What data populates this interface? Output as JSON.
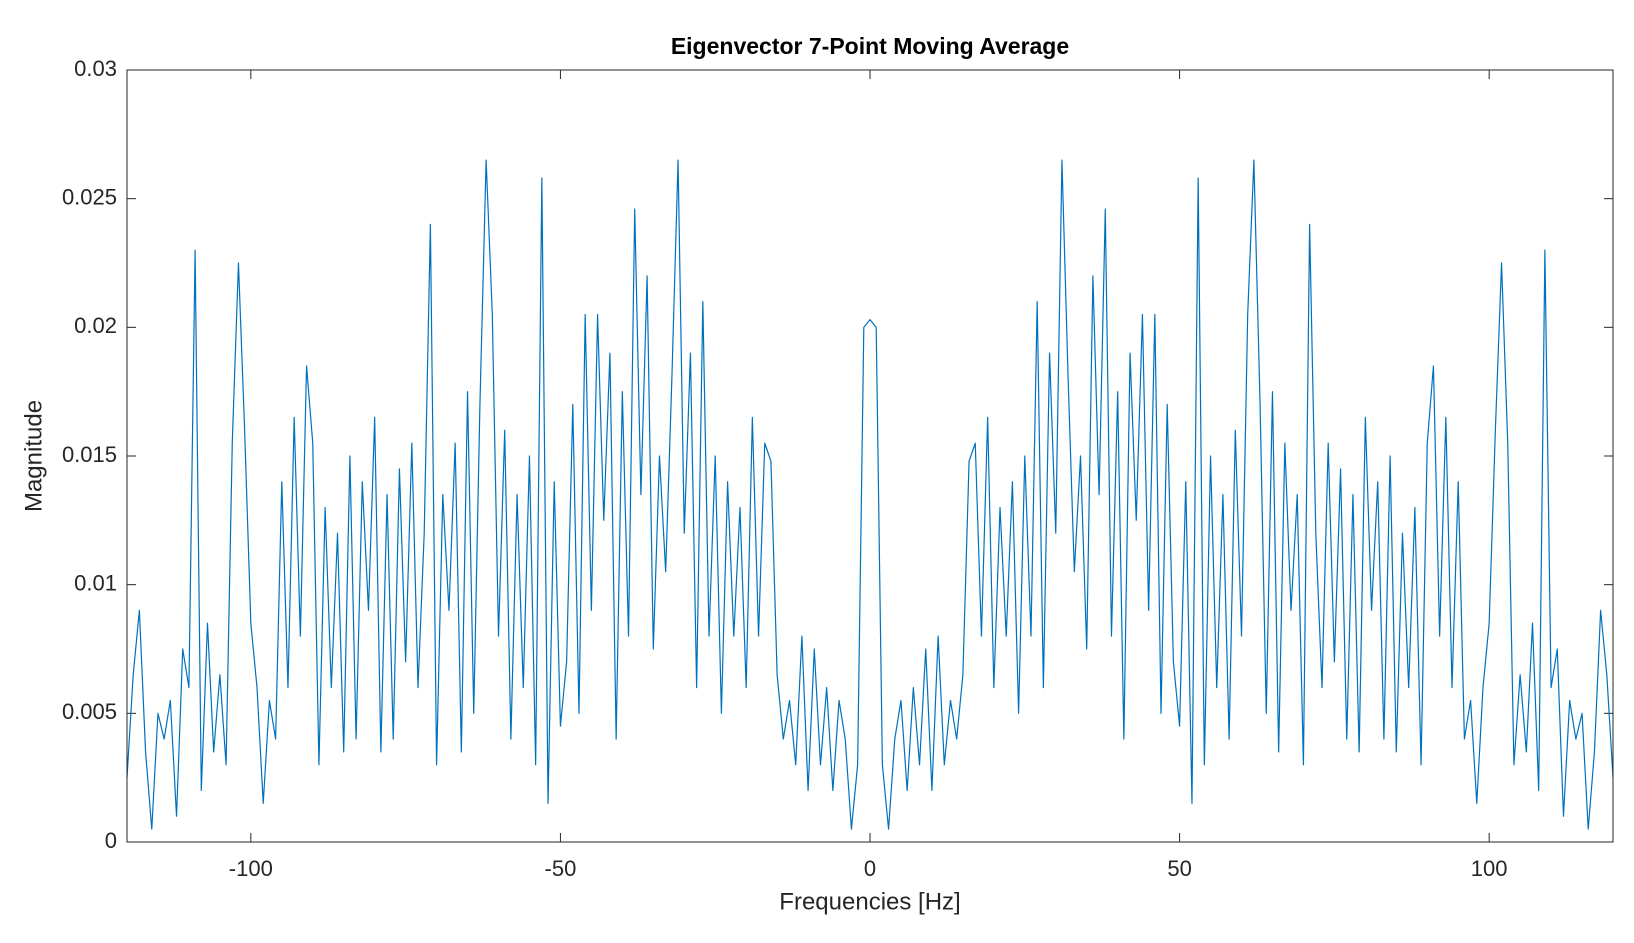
{
  "chart_data": {
    "type": "line",
    "title": "Eigenvector 7-Point Moving Average",
    "x_label": "Frequencies [Hz]",
    "y_label": "Magnitude",
    "xlim": [
      -120,
      120
    ],
    "xticks": [
      -100,
      -50,
      0,
      50,
      100
    ],
    "ylim": [
      0,
      0.03
    ],
    "yticks": [
      0,
      0.005,
      0.01,
      0.015,
      0.02,
      0.025,
      0.03
    ],
    "x": [
      -120,
      -119,
      -118,
      -117,
      -116,
      -115,
      -114,
      -113,
      -112,
      -111,
      -110,
      -109,
      -108,
      -107,
      -106,
      -105,
      -104,
      -103,
      -102,
      -101,
      -100,
      -99,
      -98,
      -97,
      -96,
      -95,
      -94,
      -93,
      -92,
      -91,
      -90,
      -89,
      -88,
      -87,
      -86,
      -85,
      -84,
      -83,
      -82,
      -81,
      -80,
      -79,
      -78,
      -77,
      -76,
      -75,
      -74,
      -73,
      -72,
      -71,
      -70,
      -69,
      -68,
      -67,
      -66,
      -65,
      -64,
      -63,
      -62,
      -61,
      -60,
      -59,
      -58,
      -57,
      -56,
      -55,
      -54,
      -53,
      -52,
      -51,
      -50,
      -49,
      -48,
      -47,
      -46,
      -45,
      -44,
      -43,
      -42,
      -41,
      -40,
      -39,
      -38,
      -37,
      -36,
      -35,
      -34,
      -33,
      -32,
      -31,
      -30,
      -29,
      -28,
      -27,
      -26,
      -25,
      -24,
      -23,
      -22,
      -21,
      -20,
      -19,
      -18,
      -17,
      -16,
      -15,
      -14,
      -13,
      -12,
      -11,
      -10,
      -9,
      -8,
      -7,
      -6,
      -5,
      -4,
      -3,
      -2,
      -1,
      0,
      1,
      2,
      3,
      4,
      5,
      6,
      7,
      8,
      9,
      10,
      11,
      12,
      13,
      14,
      15,
      16,
      17,
      18,
      19,
      20,
      21,
      22,
      23,
      24,
      25,
      26,
      27,
      28,
      29,
      30,
      31,
      32,
      33,
      34,
      35,
      36,
      37,
      38,
      39,
      40,
      41,
      42,
      43,
      44,
      45,
      46,
      47,
      48,
      49,
      50,
      51,
      52,
      53,
      54,
      55,
      56,
      57,
      58,
      59,
      60,
      61,
      62,
      63,
      64,
      65,
      66,
      67,
      68,
      69,
      70,
      71,
      72,
      73,
      74,
      75,
      76,
      77,
      78,
      79,
      80,
      81,
      82,
      83,
      84,
      85,
      86,
      87,
      88,
      89,
      90,
      91,
      92,
      93,
      94,
      95,
      96,
      97,
      98,
      99,
      100,
      101,
      102,
      103,
      104,
      105,
      106,
      107,
      108,
      109,
      110,
      111,
      112,
      113,
      114,
      115,
      116,
      117,
      118,
      119,
      120
    ],
    "series": [
      {
        "color": "#0072bd",
        "values": [
          0.0025,
          0.0065,
          0.009,
          0.0035,
          0.0005,
          0.005,
          0.004,
          0.0055,
          0.001,
          0.0075,
          0.006,
          0.023,
          0.002,
          0.0085,
          0.0035,
          0.0065,
          0.003,
          0.0155,
          0.0225,
          0.016,
          0.0085,
          0.006,
          0.0015,
          0.0055,
          0.004,
          0.014,
          0.006,
          0.0165,
          0.008,
          0.0185,
          0.0155,
          0.003,
          0.013,
          0.006,
          0.012,
          0.0035,
          0.015,
          0.004,
          0.014,
          0.009,
          0.0165,
          0.0035,
          0.0135,
          0.004,
          0.0145,
          0.007,
          0.0155,
          0.006,
          0.012,
          0.024,
          0.003,
          0.0135,
          0.009,
          0.0155,
          0.0035,
          0.0175,
          0.005,
          0.017,
          0.0265,
          0.0205,
          0.008,
          0.016,
          0.004,
          0.0135,
          0.006,
          0.015,
          0.003,
          0.0258,
          0.0015,
          0.014,
          0.0045,
          0.007,
          0.017,
          0.005,
          0.0205,
          0.009,
          0.0205,
          0.0125,
          0.019,
          0.004,
          0.0175,
          0.008,
          0.0246,
          0.0135,
          0.022,
          0.0075,
          0.015,
          0.0105,
          0.018,
          0.0265,
          0.012,
          0.019,
          0.006,
          0.021,
          0.008,
          0.015,
          0.005,
          0.014,
          0.008,
          0.013,
          0.006,
          0.0165,
          0.008,
          0.0155,
          0.0148,
          0.0065,
          0.004,
          0.0055,
          0.003,
          0.008,
          0.002,
          0.0075,
          0.003,
          0.006,
          0.002,
          0.0055,
          0.004,
          0.0005,
          0.003,
          0.02,
          0.0203,
          0.02,
          0.003,
          0.0005,
          0.004,
          0.0055,
          0.002,
          0.006,
          0.003,
          0.0075,
          0.002,
          0.008,
          0.003,
          0.0055,
          0.004,
          0.0065,
          0.0148,
          0.0155,
          0.008,
          0.0165,
          0.006,
          0.013,
          0.008,
          0.014,
          0.005,
          0.015,
          0.008,
          0.021,
          0.006,
          0.019,
          0.012,
          0.0265,
          0.018,
          0.0105,
          0.015,
          0.0075,
          0.022,
          0.0135,
          0.0246,
          0.008,
          0.0175,
          0.004,
          0.019,
          0.0125,
          0.0205,
          0.009,
          0.0205,
          0.005,
          0.017,
          0.007,
          0.0045,
          0.014,
          0.0015,
          0.0258,
          0.003,
          0.015,
          0.006,
          0.0135,
          0.004,
          0.016,
          0.008,
          0.0205,
          0.0265,
          0.017,
          0.005,
          0.0175,
          0.0035,
          0.0155,
          0.009,
          0.0135,
          0.003,
          0.024,
          0.012,
          0.006,
          0.0155,
          0.007,
          0.0145,
          0.004,
          0.0135,
          0.0035,
          0.0165,
          0.009,
          0.014,
          0.004,
          0.015,
          0.0035,
          0.012,
          0.006,
          0.013,
          0.003,
          0.0155,
          0.0185,
          0.008,
          0.0165,
          0.006,
          0.014,
          0.004,
          0.0055,
          0.0015,
          0.006,
          0.0085,
          0.016,
          0.0225,
          0.0155,
          0.003,
          0.0065,
          0.0035,
          0.0085,
          0.002,
          0.023,
          0.006,
          0.0075,
          0.001,
          0.0055,
          0.004,
          0.005,
          0.0005,
          0.0035,
          0.009,
          0.0065,
          0.0025
        ]
      }
    ]
  }
}
